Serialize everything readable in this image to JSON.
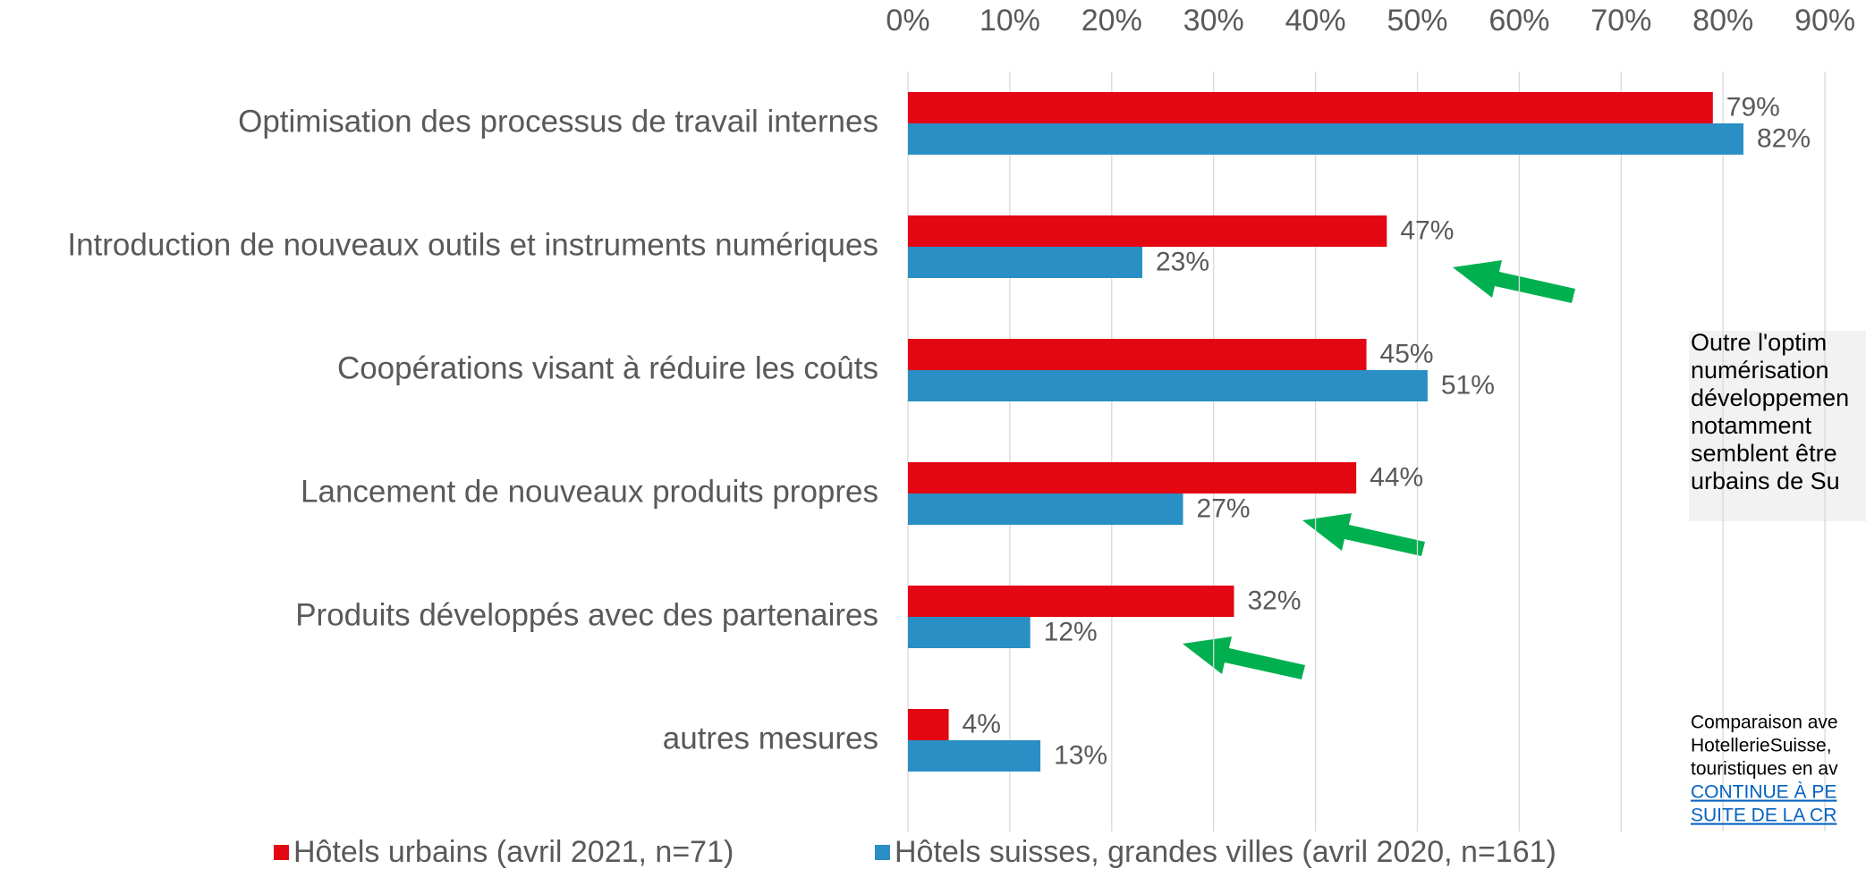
{
  "chart_data": {
    "type": "hbar",
    "categories": [
      "Optimisation des processus de travail internes",
      "Introduction de nouveaux outils et instruments numériques",
      "Coopérations visant à réduire les coûts",
      "Lancement de nouveaux produits propres",
      "Produits développés avec des partenaires",
      "autres mesures"
    ],
    "series": [
      {
        "name": "Hôtels urbains (avril 2021, n=71)",
        "color": "#e30613",
        "values": [
          79,
          47,
          45,
          44,
          32,
          4
        ],
        "value_labels": [
          "79%",
          "47%",
          "45%",
          "44%",
          "32%",
          "4%"
        ]
      },
      {
        "name": "Hôtels suisses, grandes villes (avril 2020, n=161)",
        "color": "#2a8fc4",
        "values": [
          82,
          23,
          51,
          27,
          12,
          13
        ],
        "value_labels": [
          "82%",
          "23%",
          "51%",
          "27%",
          "12%",
          "13%"
        ]
      }
    ],
    "xlim": [
      0,
      100
    ],
    "xticks": [
      {
        "value": 0,
        "label": "0%"
      },
      {
        "value": 10,
        "label": "10%"
      },
      {
        "value": 20,
        "label": "20%"
      },
      {
        "value": 30,
        "label": "30%"
      },
      {
        "value": 40,
        "label": "40%"
      },
      {
        "value": 50,
        "label": "50%"
      },
      {
        "value": 60,
        "label": "60%"
      },
      {
        "value": 70,
        "label": "70%"
      },
      {
        "value": 80,
        "label": "80%"
      },
      {
        "value": 90,
        "label": "90%"
      }
    ],
    "grid": true,
    "legend": "bottom"
  },
  "note": {
    "lines": [
      "Outre l'optim",
      "numérisation",
      "développemen",
      "notamment",
      "semblent être",
      "urbains de Su"
    ]
  },
  "source": {
    "lines": [
      "Comparaison ave",
      "HotellerieSuisse,",
      "touristiques en av"
    ],
    "link_lines": [
      "CONTINUE À PE",
      "SUITE DE LA CR"
    ]
  }
}
